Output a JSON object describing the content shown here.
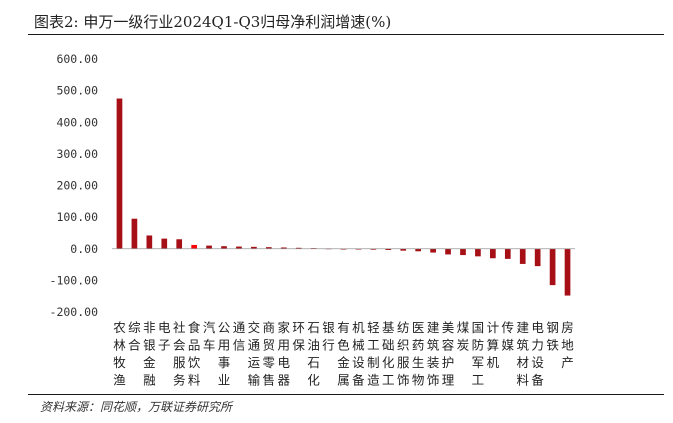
{
  "title": "图表2:  申万一级行业2024Q1-Q3归母净利润增速(%)",
  "source": "资料来源：同花顺，万联证券研究所",
  "colors": {
    "bar": "#A50F15",
    "highlight": "#FF0000",
    "axis": "#999999"
  },
  "chart_data": {
    "type": "bar",
    "title": "申万一级行业2024Q1-Q3归母净利润增速(%)",
    "xlabel": "",
    "ylabel": "",
    "ylim": [
      -200,
      600
    ],
    "yticks": [
      600,
      500,
      400,
      300,
      200,
      100,
      0,
      -100,
      -200
    ],
    "ytick_labels": [
      "600.00",
      "500.00",
      "400.00",
      "300.00",
      "200.00",
      "100.00",
      "0.00",
      "-100.00",
      "-200.00"
    ],
    "grid": false,
    "legend": "none",
    "highlight_index": 5,
    "categories": [
      "农林牧渔",
      "综合",
      "非银金融",
      "电子",
      "社会服务",
      "食品饮料",
      "汽车",
      "公用事业",
      "通信",
      "交通运输",
      "商贸零售",
      "家用电器",
      "环保",
      "石油石化",
      "银行",
      "有色金属",
      "机械设备",
      "轻工制造",
      "基础化工",
      "纺织服饰",
      "医药生物",
      "建筑装饰",
      "美容护理",
      "煤炭",
      "国防军工",
      "计算机",
      "传媒",
      "建筑材料",
      "电力设备",
      "钢铁",
      "房地产"
    ],
    "values": [
      475,
      95,
      42,
      32,
      30,
      12,
      10,
      8,
      7,
      6,
      5,
      4,
      3,
      2,
      1,
      -1,
      -2,
      -3,
      -4,
      -6,
      -8,
      -12,
      -18,
      -20,
      -24,
      -30,
      -32,
      -48,
      -55,
      -115,
      -148
    ]
  }
}
